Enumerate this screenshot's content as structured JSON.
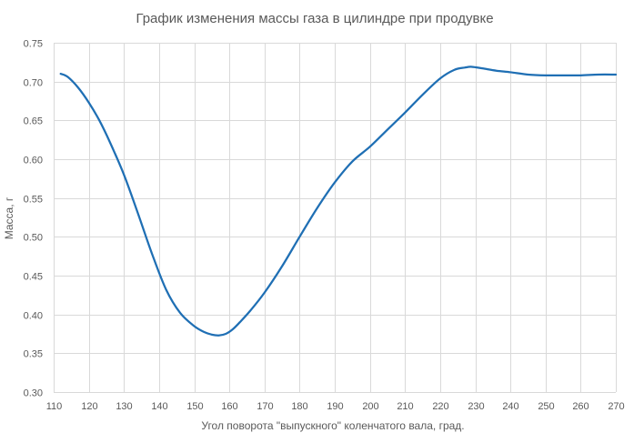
{
  "chart_data": {
    "type": "line",
    "title": "График изменения массы газа в цилиндре при продувке",
    "xlabel": "Угол поворота \"выпускного\" коленчатого вала, град.",
    "ylabel": "Масса, г",
    "xlim": [
      110,
      270
    ],
    "ylim": [
      0.3,
      0.75
    ],
    "x_ticks": [
      "110",
      "120",
      "130",
      "140",
      "150",
      "160",
      "170",
      "180",
      "190",
      "200",
      "210",
      "220",
      "230",
      "240",
      "250",
      "260",
      "270"
    ],
    "y_ticks": [
      "0.30",
      "0.35",
      "0.40",
      "0.45",
      "0.50",
      "0.55",
      "0.60",
      "0.65",
      "0.70",
      "0.75"
    ],
    "grid": true,
    "legend": "none",
    "colors": {
      "series": "#1f6fb4",
      "grid": "#d9d9d9",
      "text": "#595959"
    },
    "series": [
      {
        "x": [
          112,
          114,
          117,
          120,
          123,
          126,
          130,
          134,
          138,
          142,
          146,
          150,
          153,
          155,
          157,
          159,
          161,
          163,
          166,
          170,
          175,
          180,
          185,
          190,
          195,
          200,
          205,
          210,
          215,
          220,
          224,
          227,
          229,
          232,
          236,
          240,
          245,
          250,
          255,
          260,
          265,
          270
        ],
        "y": [
          0.71,
          0.706,
          0.692,
          0.673,
          0.65,
          0.622,
          0.58,
          0.53,
          0.478,
          0.432,
          0.402,
          0.385,
          0.377,
          0.374,
          0.373,
          0.375,
          0.381,
          0.39,
          0.405,
          0.428,
          0.462,
          0.5,
          0.537,
          0.57,
          0.597,
          0.616,
          0.638,
          0.66,
          0.683,
          0.704,
          0.715,
          0.718,
          0.719,
          0.717,
          0.714,
          0.712,
          0.709,
          0.708,
          0.708,
          0.708,
          0.709,
          0.709
        ]
      }
    ]
  }
}
